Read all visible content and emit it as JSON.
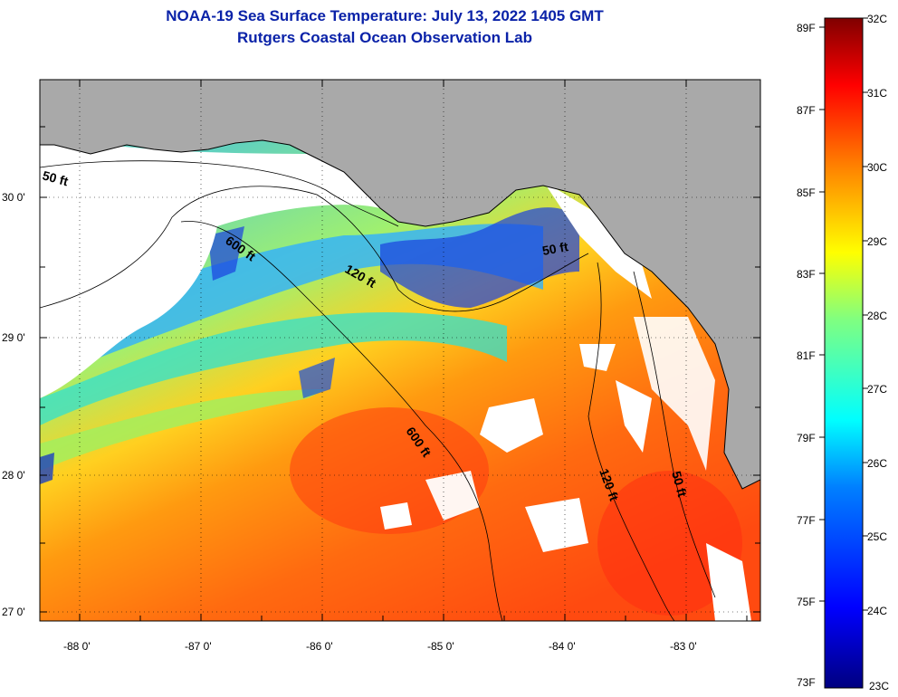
{
  "title_line1": "NOAA-19 Sea Surface Temperature:  July 13, 2022 1405 GMT",
  "title_line2": "Rutgers Coastal Ocean Observation Lab",
  "colors": {
    "land": "#a9a9a9",
    "cloud": "#ffffff",
    "coastline": "#000000",
    "title": "#0a22a8"
  },
  "latitude_labels": [
    "30 0'",
    "29 0'",
    "28 0'",
    "27 0'"
  ],
  "longitude_labels": [
    "-88 0'",
    "-87 0'",
    "-86 0'",
    "-85 0'",
    "-84 0'",
    "-83 0'"
  ],
  "contour_labels": [
    "50 ft",
    "600 ft",
    "120 ft",
    "50 ft",
    "600 ft",
    "120 ft",
    "50 ft"
  ],
  "colorbar": {
    "fahrenheit_labels": [
      "89F",
      "87F",
      "85F",
      "83F",
      "81F",
      "79F",
      "77F",
      "75F",
      "73F"
    ],
    "celsius_labels": [
      "32C",
      "31C",
      "30C",
      "29C",
      "28C",
      "27C",
      "26C",
      "25C",
      "24C",
      "23C"
    ],
    "range_celsius": [
      23,
      32
    ],
    "range_fahrenheit": [
      73,
      89
    ]
  }
}
